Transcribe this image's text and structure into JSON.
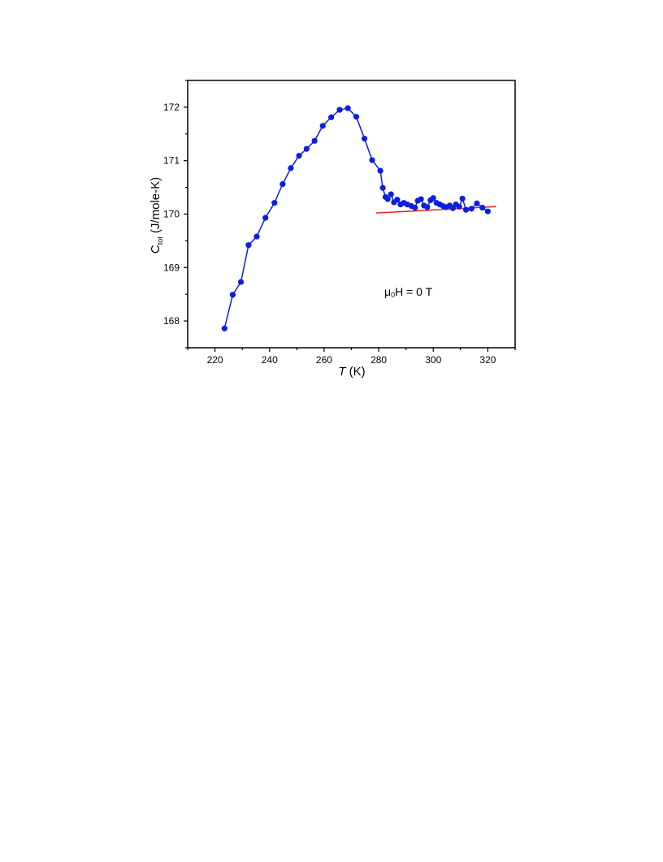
{
  "chart_data": {
    "type": "scatter",
    "xlabel": {
      "italic": "T",
      "rest": " (K)"
    },
    "ylabel": {
      "main": "C",
      "sub": "tot",
      "rest": " (J/mole-K)"
    },
    "xlim": [
      210,
      330
    ],
    "ylim": [
      167.5,
      172.5
    ],
    "xticks": [
      220,
      240,
      260,
      280,
      300,
      320
    ],
    "yticks": [
      168,
      169,
      170,
      171,
      172
    ],
    "grid": false,
    "annotation": {
      "mu": "μ",
      "sub": "0",
      "rest": "H = 0 T"
    },
    "colors": {
      "series": "#0a1fe0",
      "fit": "#e02020",
      "axes": "#000000"
    },
    "series": [
      {
        "style": "line+markers",
        "x": [
          223.5,
          226.5,
          229.5,
          232.3,
          235.3,
          238.5,
          241.8,
          244.8,
          247.8,
          250.8,
          253.6,
          256.5,
          259.5,
          262.6,
          265.7,
          268.7,
          271.8,
          274.8,
          277.6,
          280.6,
          281.5,
          282.5,
          283.3,
          284.5,
          285.6,
          286.8,
          288,
          289.2,
          290.5,
          292,
          293.3,
          294.3,
          295.5,
          296.6,
          297.8,
          299,
          300,
          301.2,
          302.4,
          303.6,
          304.8,
          306,
          307.2,
          308.3,
          309.5,
          310.7,
          312,
          314,
          316,
          318,
          320
        ],
        "y": [
          167.86,
          168.49,
          168.73,
          169.42,
          169.58,
          169.93,
          170.21,
          170.56,
          170.86,
          171.09,
          171.22,
          171.37,
          171.65,
          171.81,
          171.95,
          171.98,
          171.82,
          171.41,
          171.01,
          170.81,
          170.49,
          170.32,
          170.28,
          170.37,
          170.22,
          170.27,
          170.18,
          170.21,
          170.18,
          170.15,
          170.12,
          170.25,
          170.28,
          170.16,
          170.13,
          170.26,
          170.3,
          170.21,
          170.18,
          170.15,
          170.13,
          170.16,
          170.11,
          170.18,
          170.14,
          170.29,
          170.08,
          170.1,
          170.2,
          170.12,
          170.05
        ]
      },
      {
        "style": "line",
        "x": [
          279,
          323
        ],
        "y": [
          170.02,
          170.14
        ]
      }
    ]
  }
}
